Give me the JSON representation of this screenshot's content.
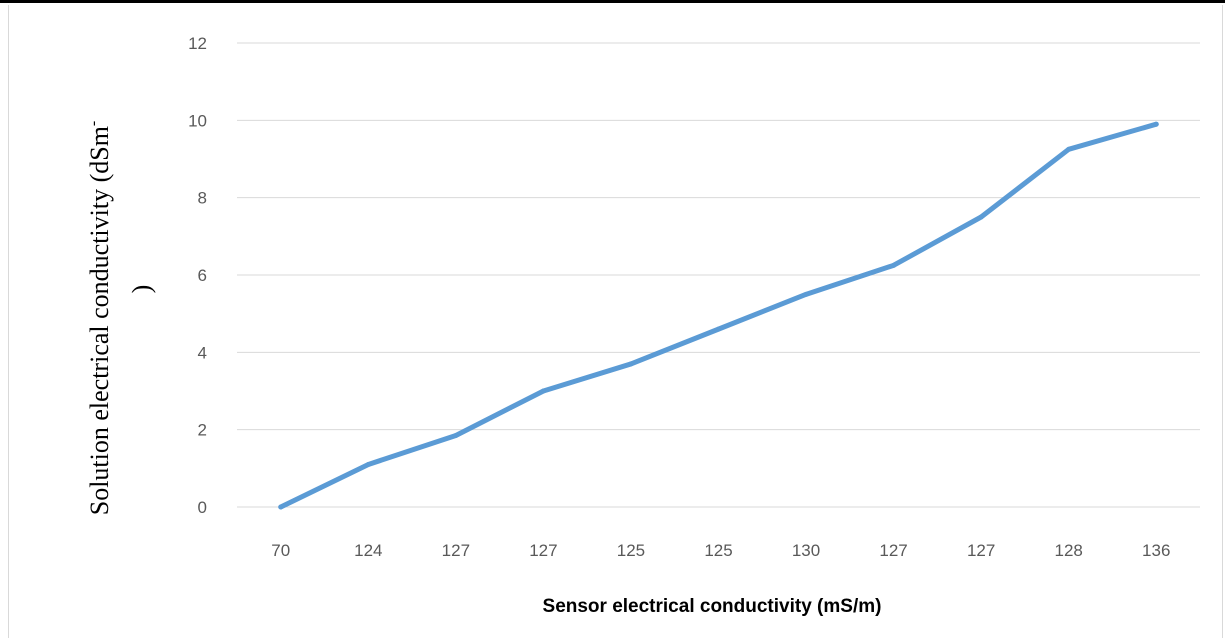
{
  "chart_data": {
    "type": "line",
    "title": "",
    "xlabel": "Sensor electrical conductivity (mS/m)",
    "ylabel_line1": "Solution electrical conductivity (dSm",
    "ylabel_superscript": "-",
    "ylabel_line2": ")",
    "categories": [
      "70",
      "124",
      "127",
      "127",
      "125",
      "125",
      "130",
      "127",
      "127",
      "128",
      "136"
    ],
    "series": [
      {
        "values": [
          0,
          1.1,
          1.85,
          3.0,
          3.7,
          4.6,
          5.5,
          6.25,
          7.5,
          9.25,
          9.9
        ],
        "color": "#5b9bd5"
      }
    ],
    "ylim": [
      0,
      12
    ],
    "yticks": [
      0,
      2,
      4,
      6,
      8,
      10,
      12
    ],
    "grid": true,
    "legend": "none"
  }
}
